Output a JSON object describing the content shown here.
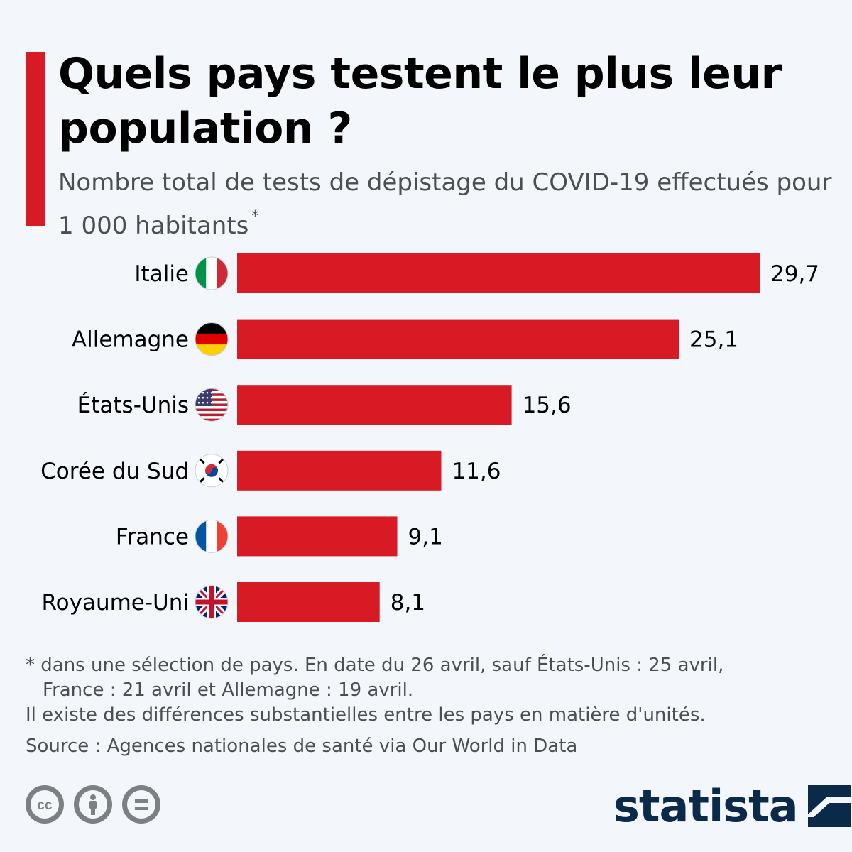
{
  "header": {
    "title": "Quels pays testent le plus leur population ?",
    "subtitle": "Nombre total de tests de dépistage du COVID-19 effectués pour 1 000 habitants",
    "subtitle_mark": "*"
  },
  "colors": {
    "bar": "#d71a24",
    "accent": "#d71a24",
    "text": "#000000",
    "muted": "#4a4f55",
    "brand": "#0b2a4a",
    "background": "#f3f7fb"
  },
  "chart_data": {
    "type": "bar",
    "orientation": "horizontal",
    "title": "Quels pays testent le plus leur population ?",
    "subtitle": "Nombre total de tests de dépistage du COVID-19 effectués pour 1 000 habitants",
    "categories": [
      "Italie",
      "Allemagne",
      "États-Unis",
      "Corée du Sud",
      "France",
      "Royaume-Uni"
    ],
    "flags": [
      "italy-flag-icon",
      "germany-flag-icon",
      "usa-flag-icon",
      "south-korea-flag-icon",
      "france-flag-icon",
      "uk-flag-icon"
    ],
    "values": [
      29.7,
      25.1,
      15.6,
      11.6,
      9.1,
      8.1
    ],
    "value_labels": [
      "29,7",
      "25,1",
      "15,6",
      "11,6",
      "9,1",
      "8,1"
    ],
    "xlim": [
      0,
      29.7
    ],
    "grid": false,
    "legend": "none"
  },
  "footnotes": {
    "line1": "* dans une sélection de pays. En date du 26 avril, sauf États-Unis : 25 avril,",
    "line2": "France : 21 avril et Allemagne : 19 avril.",
    "line3": "Il existe des différences substantielles entre les pays en matière d'unités.",
    "source": "Source : Agences nationales de santé via Our World in Data"
  },
  "license_icons": [
    "creative-commons-icon",
    "attribution-icon",
    "no-derivatives-icon"
  ],
  "brand": {
    "name": "statista"
  }
}
